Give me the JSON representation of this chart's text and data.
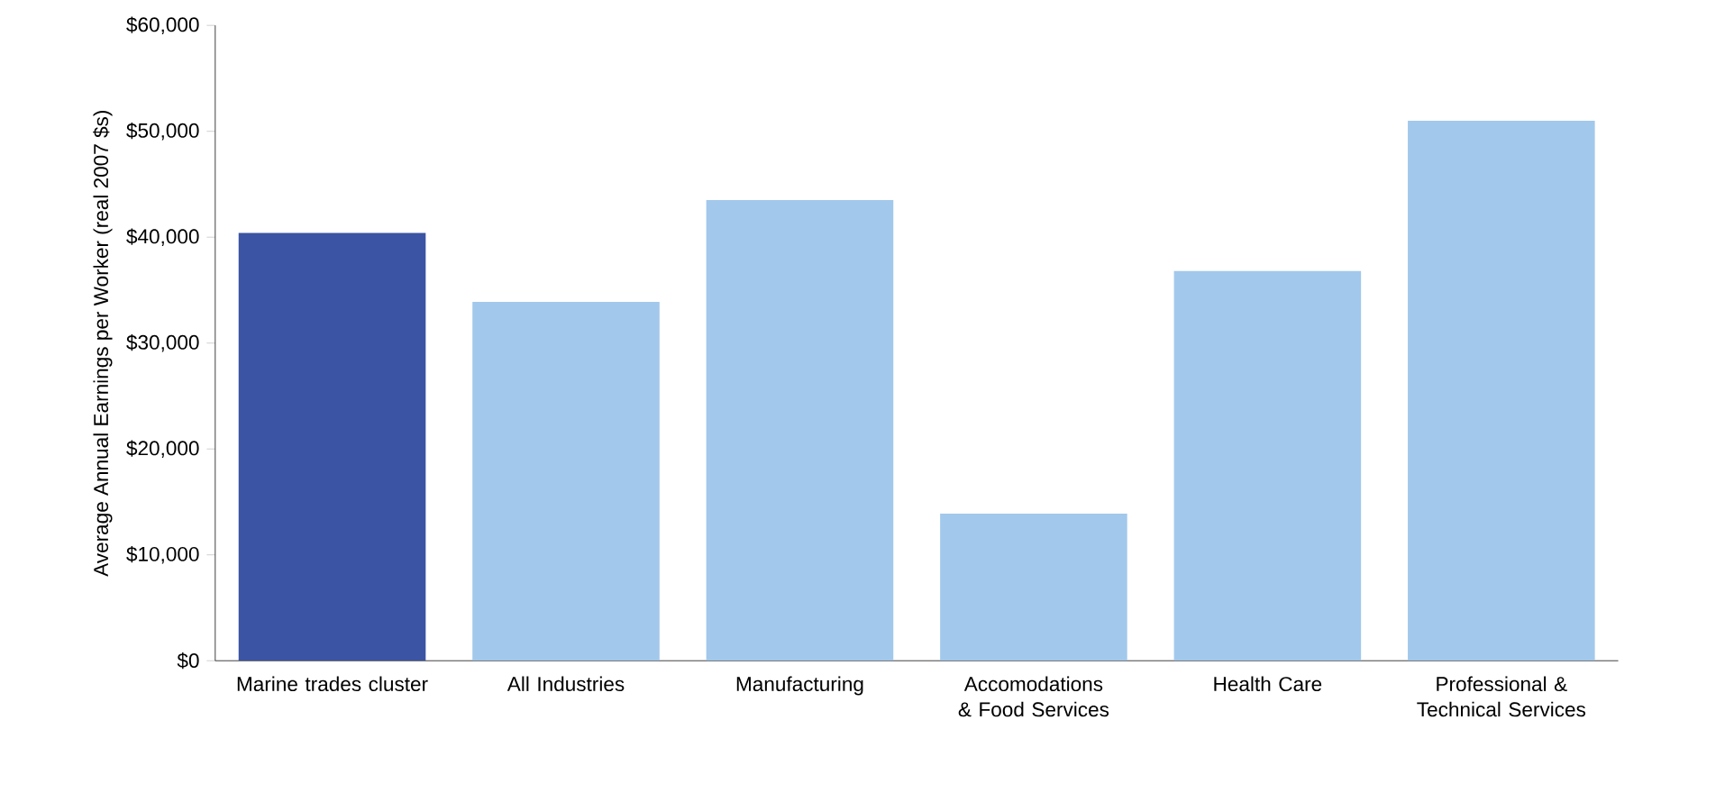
{
  "chart_data": {
    "type": "bar",
    "ylabel": "Average Annual Earnings per Worker (real 2007 $s)",
    "categories": [
      "Marine trades cluster",
      "All Industries",
      "Manufacturing",
      "Accomodations & Food Services",
      "Health Care",
      "Professional & Technical Services"
    ],
    "values": [
      40400,
      33900,
      43500,
      13900,
      36800,
      51000
    ],
    "colors": [
      "#3b54a3",
      "#a2c8ec",
      "#a2c8ec",
      "#a2c8ec",
      "#a2c8ec",
      "#a2c8ec"
    ],
    "ylim": [
      0,
      60000
    ],
    "yticks": [
      {
        "value": 0,
        "label": "$0"
      },
      {
        "value": 10000,
        "label": "$10,000"
      },
      {
        "value": 20000,
        "label": "$20,000"
      },
      {
        "value": 30000,
        "label": "$30,000"
      },
      {
        "value": 40000,
        "label": "$40,000"
      },
      {
        "value": 50000,
        "label": "$50,000"
      },
      {
        "value": 60000,
        "label": "$60,000"
      }
    ],
    "grid": false
  }
}
